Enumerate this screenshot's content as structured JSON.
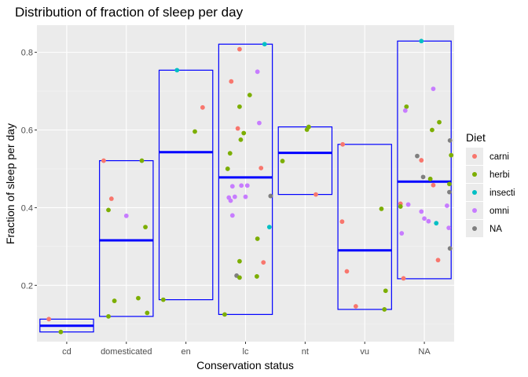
{
  "chart_data": {
    "type": "scatter",
    "title": "Distribution of fraction of sleep per day",
    "xlabel": "Conservation status",
    "ylabel": "Fraction of sleep per day",
    "categories": [
      "cd",
      "domesticated",
      "en",
      "lc",
      "nt",
      "vu",
      "NA"
    ],
    "ylim": [
      0.055,
      0.87
    ],
    "yticks": [
      0.2,
      0.4,
      0.6,
      0.8
    ],
    "ytick_labels": [
      "0.2",
      "0.4",
      "0.6",
      "0.8"
    ],
    "grid": true,
    "legend": {
      "title": "Diet",
      "position": "right",
      "entries": [
        {
          "label": "carni",
          "color": "#F8766D"
        },
        {
          "label": "herbi",
          "color": "#7CAE00"
        },
        {
          "label": "insecti",
          "color": "#00BFC4"
        },
        {
          "label": "omni",
          "color": "#C77CFF"
        },
        {
          "label": "NA",
          "color": "#7F7F7F"
        }
      ]
    },
    "summary_boxes": {
      "description": "min/max rectangle with mean line per conservation status",
      "color": "#0000FF",
      "boxes": [
        {
          "category": "cd",
          "min": 0.08,
          "max": 0.113,
          "mean": 0.096
        },
        {
          "category": "domesticated",
          "min": 0.12,
          "max": 0.521,
          "mean": 0.316
        },
        {
          "category": "en",
          "min": 0.163,
          "max": 0.754,
          "mean": 0.543
        },
        {
          "category": "lc",
          "min": 0.125,
          "max": 0.821,
          "mean": 0.478
        },
        {
          "category": "nt",
          "min": 0.434,
          "max": 0.608,
          "mean": 0.541
        },
        {
          "category": "vu",
          "min": 0.138,
          "max": 0.563,
          "mean": 0.29
        },
        {
          "category": "NA",
          "min": 0.217,
          "max": 0.829,
          "mean": 0.467
        }
      ]
    },
    "points": [
      {
        "category": "cd",
        "jitter": -0.3,
        "y": 0.113,
        "diet": "carni"
      },
      {
        "category": "cd",
        "jitter": -0.1,
        "y": 0.08,
        "diet": "herbi"
      },
      {
        "category": "domesticated",
        "jitter": -0.38,
        "y": 0.521,
        "diet": "carni"
      },
      {
        "category": "domesticated",
        "jitter": -0.25,
        "y": 0.423,
        "diet": "carni"
      },
      {
        "category": "domesticated",
        "jitter": -0.3,
        "y": 0.394,
        "diet": "herbi"
      },
      {
        "category": "domesticated",
        "jitter": 0.26,
        "y": 0.521,
        "diet": "herbi"
      },
      {
        "category": "domesticated",
        "jitter": 0.0,
        "y": 0.379,
        "diet": "omni"
      },
      {
        "category": "domesticated",
        "jitter": 0.32,
        "y": 0.35,
        "diet": "herbi"
      },
      {
        "category": "domesticated",
        "jitter": -0.2,
        "y": 0.16,
        "diet": "herbi"
      },
      {
        "category": "domesticated",
        "jitter": 0.2,
        "y": 0.167,
        "diet": "herbi"
      },
      {
        "category": "domesticated",
        "jitter": -0.3,
        "y": 0.12,
        "diet": "herbi"
      },
      {
        "category": "domesticated",
        "jitter": 0.35,
        "y": 0.129,
        "diet": "herbi"
      },
      {
        "category": "en",
        "jitter": -0.15,
        "y": 0.754,
        "diet": "insecti"
      },
      {
        "category": "en",
        "jitter": 0.28,
        "y": 0.658,
        "diet": "carni"
      },
      {
        "category": "en",
        "jitter": 0.15,
        "y": 0.596,
        "diet": "herbi"
      },
      {
        "category": "en",
        "jitter": -0.38,
        "y": 0.163,
        "diet": "herbi"
      },
      {
        "category": "lc",
        "jitter": -0.1,
        "y": 0.808,
        "diet": "carni"
      },
      {
        "category": "lc",
        "jitter": 0.32,
        "y": 0.821,
        "diet": "insecti"
      },
      {
        "category": "lc",
        "jitter": 0.2,
        "y": 0.75,
        "diet": "omni"
      },
      {
        "category": "lc",
        "jitter": -0.24,
        "y": 0.725,
        "diet": "carni"
      },
      {
        "category": "lc",
        "jitter": 0.07,
        "y": 0.69,
        "diet": "herbi"
      },
      {
        "category": "lc",
        "jitter": -0.1,
        "y": 0.66,
        "diet": "herbi"
      },
      {
        "category": "lc",
        "jitter": 0.23,
        "y": 0.618,
        "diet": "omni"
      },
      {
        "category": "lc",
        "jitter": -0.13,
        "y": 0.604,
        "diet": "carni"
      },
      {
        "category": "lc",
        "jitter": -0.03,
        "y": 0.592,
        "diet": "herbi"
      },
      {
        "category": "lc",
        "jitter": -0.08,
        "y": 0.575,
        "diet": "herbi"
      },
      {
        "category": "lc",
        "jitter": -0.26,
        "y": 0.54,
        "diet": "herbi"
      },
      {
        "category": "lc",
        "jitter": -0.3,
        "y": 0.5,
        "diet": "herbi"
      },
      {
        "category": "lc",
        "jitter": 0.26,
        "y": 0.502,
        "diet": "carni"
      },
      {
        "category": "lc",
        "jitter": -0.22,
        "y": 0.455,
        "diet": "omni"
      },
      {
        "category": "lc",
        "jitter": -0.07,
        "y": 0.457,
        "diet": "omni"
      },
      {
        "category": "lc",
        "jitter": 0.03,
        "y": 0.457,
        "diet": "omni"
      },
      {
        "category": "lc",
        "jitter": -0.28,
        "y": 0.426,
        "diet": "omni"
      },
      {
        "category": "lc",
        "jitter": -0.25,
        "y": 0.418,
        "diet": "omni"
      },
      {
        "category": "lc",
        "jitter": -0.18,
        "y": 0.428,
        "diet": "omni"
      },
      {
        "category": "lc",
        "jitter": 0.0,
        "y": 0.428,
        "diet": "omni"
      },
      {
        "category": "lc",
        "jitter": 0.42,
        "y": 0.43,
        "diet": "NA"
      },
      {
        "category": "lc",
        "jitter": -0.22,
        "y": 0.38,
        "diet": "omni"
      },
      {
        "category": "lc",
        "jitter": 0.4,
        "y": 0.35,
        "diet": "insecti"
      },
      {
        "category": "lc",
        "jitter": 0.2,
        "y": 0.32,
        "diet": "herbi"
      },
      {
        "category": "lc",
        "jitter": -0.1,
        "y": 0.262,
        "diet": "herbi"
      },
      {
        "category": "lc",
        "jitter": 0.3,
        "y": 0.259,
        "diet": "carni"
      },
      {
        "category": "lc",
        "jitter": -0.15,
        "y": 0.225,
        "diet": "NA"
      },
      {
        "category": "lc",
        "jitter": -0.1,
        "y": 0.22,
        "diet": "herbi"
      },
      {
        "category": "lc",
        "jitter": 0.19,
        "y": 0.223,
        "diet": "herbi"
      },
      {
        "category": "lc",
        "jitter": -0.35,
        "y": 0.125,
        "diet": "herbi"
      },
      {
        "category": "nt",
        "jitter": 0.06,
        "y": 0.608,
        "diet": "herbi"
      },
      {
        "category": "nt",
        "jitter": 0.03,
        "y": 0.601,
        "diet": "herbi"
      },
      {
        "category": "nt",
        "jitter": -0.38,
        "y": 0.52,
        "diet": "herbi"
      },
      {
        "category": "nt",
        "jitter": 0.18,
        "y": 0.434,
        "diet": "carni"
      },
      {
        "category": "vu",
        "jitter": -0.37,
        "y": 0.563,
        "diet": "carni"
      },
      {
        "category": "vu",
        "jitter": 0.28,
        "y": 0.397,
        "diet": "herbi"
      },
      {
        "category": "vu",
        "jitter": -0.38,
        "y": 0.364,
        "diet": "carni"
      },
      {
        "category": "vu",
        "jitter": -0.3,
        "y": 0.236,
        "diet": "carni"
      },
      {
        "category": "vu",
        "jitter": 0.35,
        "y": 0.186,
        "diet": "herbi"
      },
      {
        "category": "vu",
        "jitter": -0.15,
        "y": 0.146,
        "diet": "carni"
      },
      {
        "category": "vu",
        "jitter": 0.33,
        "y": 0.138,
        "diet": "herbi"
      },
      {
        "category": "NA",
        "jitter": -0.05,
        "y": 0.829,
        "diet": "insecti"
      },
      {
        "category": "NA",
        "jitter": 0.15,
        "y": 0.706,
        "diet": "omni"
      },
      {
        "category": "NA",
        "jitter": -0.3,
        "y": 0.66,
        "diet": "herbi"
      },
      {
        "category": "NA",
        "jitter": -0.32,
        "y": 0.65,
        "diet": "omni"
      },
      {
        "category": "NA",
        "jitter": 0.25,
        "y": 0.62,
        "diet": "herbi"
      },
      {
        "category": "NA",
        "jitter": 0.13,
        "y": 0.6,
        "diet": "herbi"
      },
      {
        "category": "NA",
        "jitter": 0.43,
        "y": 0.573,
        "diet": "NA"
      },
      {
        "category": "NA",
        "jitter": 0.45,
        "y": 0.535,
        "diet": "herbi"
      },
      {
        "category": "NA",
        "jitter": -0.12,
        "y": 0.533,
        "diet": "NA"
      },
      {
        "category": "NA",
        "jitter": -0.05,
        "y": 0.522,
        "diet": "carni"
      },
      {
        "category": "NA",
        "jitter": -0.02,
        "y": 0.479,
        "diet": "NA"
      },
      {
        "category": "NA",
        "jitter": 0.1,
        "y": 0.474,
        "diet": "herbi"
      },
      {
        "category": "NA",
        "jitter": 0.15,
        "y": 0.458,
        "diet": "carni"
      },
      {
        "category": "NA",
        "jitter": 0.42,
        "y": 0.461,
        "diet": "herbi"
      },
      {
        "category": "NA",
        "jitter": 0.42,
        "y": 0.44,
        "diet": "NA"
      },
      {
        "category": "NA",
        "jitter": -0.4,
        "y": 0.41,
        "diet": "carni"
      },
      {
        "category": "NA",
        "jitter": -0.4,
        "y": 0.403,
        "diet": "herbi"
      },
      {
        "category": "NA",
        "jitter": -0.27,
        "y": 0.408,
        "diet": "omni"
      },
      {
        "category": "NA",
        "jitter": 0.38,
        "y": 0.405,
        "diet": "omni"
      },
      {
        "category": "NA",
        "jitter": -0.05,
        "y": 0.39,
        "diet": "omni"
      },
      {
        "category": "NA",
        "jitter": 0.0,
        "y": 0.372,
        "diet": "omni"
      },
      {
        "category": "NA",
        "jitter": 0.07,
        "y": 0.365,
        "diet": "omni"
      },
      {
        "category": "NA",
        "jitter": 0.2,
        "y": 0.36,
        "diet": "insecti"
      },
      {
        "category": "NA",
        "jitter": 0.41,
        "y": 0.348,
        "diet": "omni"
      },
      {
        "category": "NA",
        "jitter": -0.38,
        "y": 0.334,
        "diet": "omni"
      },
      {
        "category": "NA",
        "jitter": 0.43,
        "y": 0.295,
        "diet": "NA"
      },
      {
        "category": "NA",
        "jitter": 0.23,
        "y": 0.265,
        "diet": "carni"
      },
      {
        "category": "NA",
        "jitter": -0.35,
        "y": 0.218,
        "diet": "carni"
      }
    ]
  }
}
